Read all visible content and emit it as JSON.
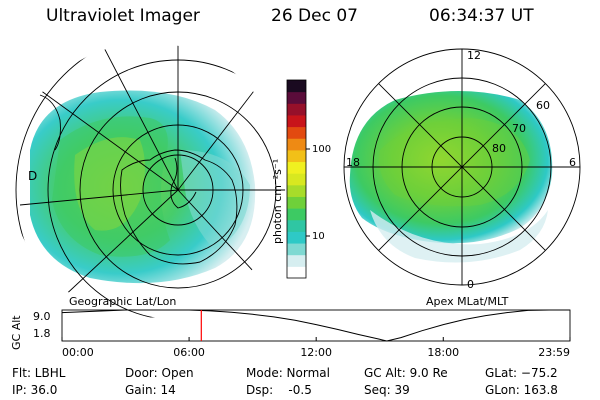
{
  "header": {
    "instrument": "Ultraviolet Imager",
    "date": "26 Dec 07",
    "time": "06:34:37 UT"
  },
  "left_map": {
    "caption": "Geographic Lat/Lon",
    "edge_label": "D"
  },
  "right_map": {
    "caption": "Apex  MLat/MLT",
    "mlt_labels": [
      "12",
      "18",
      "6",
      "0"
    ],
    "mlat_labels": [
      "60",
      "70",
      "80"
    ]
  },
  "colorbar": {
    "unit_label": "photon cm⁻²s⁻¹",
    "ticks": [
      "100",
      "10"
    ],
    "scale": "log",
    "colors": [
      "#ffffff",
      "#d6eef0",
      "#7fd9d2",
      "#2ec9c6",
      "#2fc6a3",
      "#3dca63",
      "#6fd03a",
      "#a8dc2a",
      "#d8e820",
      "#f0f020",
      "#f2c018",
      "#ee8a14",
      "#e24a10",
      "#c8141a",
      "#96102a",
      "#5a0c3a",
      "#1a0a20"
    ]
  },
  "timeline": {
    "ylabel": "GC Alt",
    "yticks": [
      "9.0",
      "1.8"
    ],
    "xticks": [
      "00:00",
      "06:00",
      "12:00",
      "18:00",
      "23:59"
    ],
    "marker_color": "#ff0000"
  },
  "chart_data": {
    "type": "line",
    "title": "Ultraviolet Imager",
    "xlabel": "",
    "ylabel": "GC Alt",
    "x": [
      "00:00",
      "01:00",
      "02:00",
      "03:00",
      "04:00",
      "05:00",
      "06:00",
      "07:00",
      "08:00",
      "09:00",
      "10:00",
      "11:00",
      "12:00",
      "13:00",
      "14:00",
      "15:00",
      "15:20",
      "16:00",
      "17:00",
      "18:00",
      "19:00",
      "20:00",
      "21:00",
      "22:00",
      "23:00",
      "23:59"
    ],
    "series": [
      {
        "values": [
          8.4,
          8.6,
          8.8,
          9.0,
          9.1,
          9.1,
          9.0,
          8.8,
          8.5,
          8.0,
          7.4,
          6.6,
          5.6,
          4.5,
          3.3,
          2.2,
          1.8,
          2.6,
          4.2,
          5.6,
          6.8,
          7.7,
          8.4,
          8.9,
          9.1,
          9.2
        ]
      }
    ],
    "ylim": [
      1.8,
      9.0
    ],
    "current_time": "06:34:37"
  },
  "info": {
    "flt": "Flt: LBHL",
    "ip": "IP: 36.0",
    "door": "Door: Open",
    "gain": "Gain: 14",
    "mode": "Mode: Normal",
    "dsp": "Dsp:    -0.5",
    "gcalt": "GC Alt: 9.0 Re",
    "seq": "Seq: 39",
    "glat": "GLat: −75.2",
    "glon": "GLon: 163.8"
  }
}
